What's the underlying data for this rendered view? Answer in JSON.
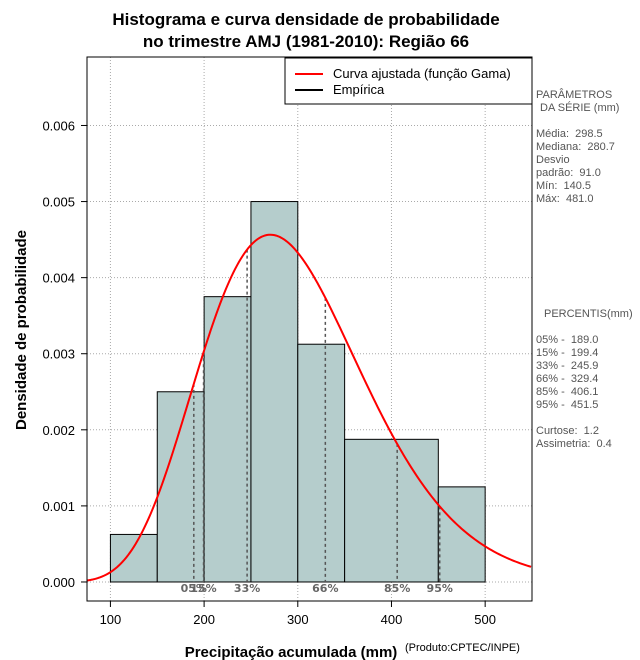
{
  "chart_data": {
    "type": "bar",
    "title_lines": [
      "Histograma e curva densidade de probabilidade",
      "no trimestre AMJ (1981-2010): Região 66"
    ],
    "xlabel": "Precipitação acumulada (mm)",
    "ylabel": "Densidade de probabilidade",
    "credit": "(Produto:CPTEC/INPE)",
    "xlim": [
      75,
      550
    ],
    "ylim": [
      -0.00025,
      0.0069
    ],
    "x_ticks": [
      100,
      200,
      300,
      400,
      500
    ],
    "y_ticks": [
      0.0,
      0.001,
      0.002,
      0.003,
      0.004,
      0.005,
      0.006
    ],
    "y_tick_labels": [
      "0.000",
      "0.001",
      "0.002",
      "0.003",
      "0.004",
      "0.005",
      "0.006"
    ],
    "bins": [
      {
        "start": 100,
        "end": 150,
        "density": 0.000625
      },
      {
        "start": 150,
        "end": 200,
        "density": 0.0025
      },
      {
        "start": 200,
        "end": 250,
        "density": 0.00375
      },
      {
        "start": 250,
        "end": 300,
        "density": 0.005
      },
      {
        "start": 300,
        "end": 350,
        "density": 0.003125
      },
      {
        "start": 350,
        "end": 450,
        "density": 0.001875
      },
      {
        "start": 450,
        "end": 500,
        "density": 0.00125
      }
    ],
    "gamma_fit": {
      "shape": 10.76,
      "scale": 27.74
    },
    "percentile_lines": [
      {
        "label": "05%",
        "x": 189.0
      },
      {
        "label": "15%",
        "x": 199.4
      },
      {
        "label": "33%",
        "x": 245.9
      },
      {
        "label": "66%",
        "x": 329.4
      },
      {
        "label": "85%",
        "x": 406.1
      },
      {
        "label": "95%",
        "x": 451.5
      }
    ],
    "legend": [
      {
        "label": "Curva ajustada (função Gama)",
        "color": "#ff0000"
      },
      {
        "label": "Empírica",
        "color": "#000000"
      }
    ],
    "legend_position": "top-right",
    "grid": true,
    "colors": {
      "bar_fill": "#b5cdcc",
      "curve": "#ff0000",
      "grid": "#aaaaaa",
      "percentile": "#555555"
    }
  },
  "stats_panel": {
    "params_title_1": "PARÂMETROS",
    "params_title_2": "DA SÉRIE (mm)",
    "media": "Média:  298.5",
    "mediana": "Mediana:  280.7",
    "desvio_1": "Desvio",
    "desvio_2": "padrão:  91.0",
    "min": "Mín:  140.5",
    "max": "Máx:  481.0",
    "percentis_title": "PERCENTIS(mm)",
    "p05": "05% -  189.0",
    "p15": "15% -  199.4",
    "p33": "33% -  245.9",
    "p66": "66% -  329.4",
    "p85": "85% -  406.1",
    "p95": "95% -  451.5",
    "curtose": "Curtose:  1.2",
    "assimetria": "Assimetria:  0.4"
  }
}
